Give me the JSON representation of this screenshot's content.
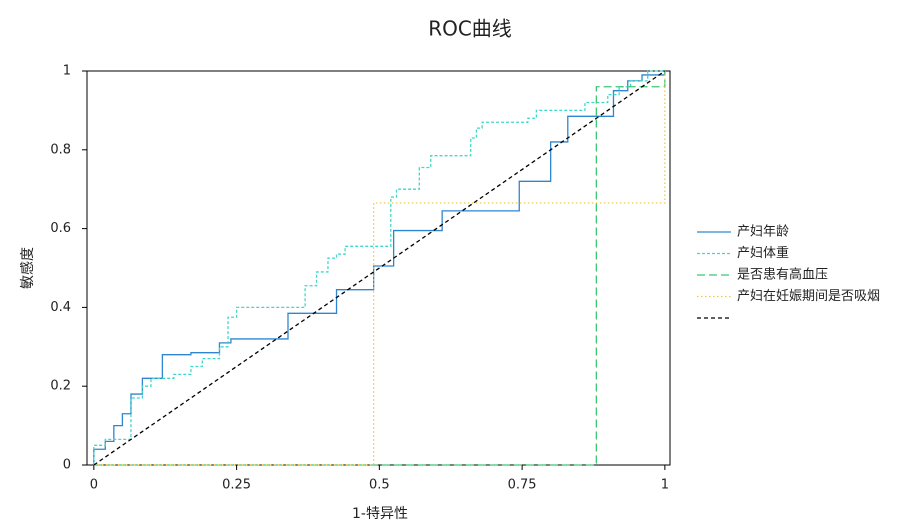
{
  "chart_data": {
    "type": "line",
    "title": "ROC曲线",
    "xlabel": "1-特异性",
    "ylabel": "敏感度",
    "xlim": [
      -0.012,
      1.009
    ],
    "ylim": [
      0,
      1
    ],
    "xticks": [
      0,
      0.25,
      0.5,
      0.75,
      1
    ],
    "yticks": [
      0,
      0.2,
      0.4,
      0.6,
      0.8,
      1
    ],
    "legend": "right",
    "series": [
      {
        "name": "产妇年龄",
        "color": "#2f86d0",
        "dash": "none",
        "x": [
          0,
          0,
          0.02,
          0.02,
          0.035,
          0.035,
          0.05,
          0.05,
          0.065,
          0.065,
          0.085,
          0.085,
          0.12,
          0.12,
          0.17,
          0.17,
          0.22,
          0.22,
          0.24,
          0.24,
          0.34,
          0.34,
          0.425,
          0.425,
          0.49,
          0.49,
          0.525,
          0.525,
          0.61,
          0.61,
          0.745,
          0.745,
          0.8,
          0.8,
          0.83,
          0.83,
          0.91,
          0.91,
          0.935,
          0.935,
          0.96,
          0.96,
          1,
          1
        ],
        "values": [
          0,
          0.04,
          0.04,
          0.06,
          0.06,
          0.1,
          0.1,
          0.13,
          0.13,
          0.18,
          0.18,
          0.22,
          0.22,
          0.28,
          0.28,
          0.285,
          0.285,
          0.31,
          0.31,
          0.32,
          0.32,
          0.385,
          0.385,
          0.445,
          0.445,
          0.505,
          0.505,
          0.595,
          0.595,
          0.645,
          0.645,
          0.72,
          0.72,
          0.82,
          0.82,
          0.885,
          0.885,
          0.95,
          0.95,
          0.975,
          0.975,
          0.99,
          0.99,
          1
        ]
      },
      {
        "name": "产妇体重",
        "color": "#40d8c8",
        "dash": "3 2",
        "x": [
          0,
          0,
          0.02,
          0.02,
          0.065,
          0.065,
          0.085,
          0.085,
          0.1,
          0.1,
          0.14,
          0.14,
          0.17,
          0.17,
          0.19,
          0.19,
          0.22,
          0.22,
          0.235,
          0.235,
          0.25,
          0.25,
          0.37,
          0.37,
          0.39,
          0.39,
          0.41,
          0.41,
          0.425,
          0.425,
          0.44,
          0.44,
          0.52,
          0.52,
          0.53,
          0.53,
          0.57,
          0.57,
          0.59,
          0.59,
          0.66,
          0.66,
          0.67,
          0.67,
          0.68,
          0.68,
          0.76,
          0.76,
          0.775,
          0.775,
          0.86,
          0.86,
          0.9,
          0.9,
          0.92,
          0.92,
          0.94,
          0.94,
          0.97,
          0.97,
          1
        ],
        "values": [
          0,
          0.05,
          0.05,
          0.065,
          0.065,
          0.17,
          0.17,
          0.2,
          0.2,
          0.22,
          0.22,
          0.23,
          0.23,
          0.25,
          0.25,
          0.27,
          0.27,
          0.3,
          0.3,
          0.375,
          0.375,
          0.4,
          0.4,
          0.455,
          0.455,
          0.49,
          0.49,
          0.525,
          0.525,
          0.535,
          0.535,
          0.555,
          0.555,
          0.68,
          0.68,
          0.7,
          0.7,
          0.755,
          0.755,
          0.785,
          0.785,
          0.83,
          0.83,
          0.855,
          0.855,
          0.87,
          0.87,
          0.88,
          0.88,
          0.9,
          0.9,
          0.92,
          0.92,
          0.94,
          0.94,
          0.96,
          0.96,
          0.975,
          0.975,
          1,
          1
        ]
      },
      {
        "name": "是否患有高血压",
        "color": "#3cc870",
        "dash": "8 4",
        "x": [
          0,
          0.88,
          0.88,
          1,
          1
        ],
        "values": [
          0,
          0,
          0.96,
          0.96,
          1
        ]
      },
      {
        "name": "产妇在妊娠期间是否吸烟",
        "color": "#f5c542",
        "dash": "1.5 2.5",
        "x": [
          0,
          0.49,
          0.49,
          1,
          1
        ],
        "values": [
          0,
          0,
          0.665,
          0.665,
          1
        ]
      },
      {
        "color": "#000000",
        "dash": "4 3",
        "x": [
          0,
          1
        ],
        "values": [
          0,
          1
        ]
      }
    ]
  }
}
